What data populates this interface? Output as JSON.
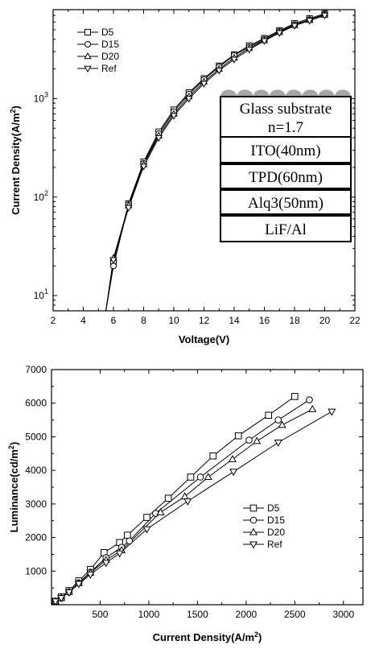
{
  "chart_data": [
    {
      "type": "line",
      "xlabel": "Voltage(V)",
      "ylabel": "Current Density(A/m²)",
      "xlim": [
        2,
        22
      ],
      "ylim": [
        7,
        8000
      ],
      "yscale": "log",
      "xticks": [
        2,
        4,
        6,
        8,
        10,
        12,
        14,
        16,
        18,
        20,
        22
      ],
      "xtick_labels": [
        "2",
        "4",
        "6",
        "8",
        "10",
        "12",
        "14",
        "16",
        "18",
        "20",
        "22"
      ],
      "yticks": [
        10,
        100,
        1000
      ],
      "ytick_labels": [
        "10¹",
        "10²",
        "10³"
      ],
      "legend_position": "top-left",
      "series": [
        {
          "name": "D5",
          "marker": "square",
          "x": [
            5.5,
            6,
            7,
            8,
            9,
            10,
            11,
            12,
            13,
            14,
            15,
            16,
            17,
            18,
            19,
            20
          ],
          "y": [
            7,
            22,
            86,
            228,
            460,
            770,
            1150,
            1600,
            2150,
            2800,
            3450,
            4100,
            4900,
            5800,
            6500,
            7300
          ]
        },
        {
          "name": "D15",
          "marker": "circle",
          "x": [
            5.5,
            6,
            7,
            8,
            9,
            10,
            11,
            12,
            13,
            14,
            15,
            16,
            17,
            18,
            19,
            20
          ],
          "y": [
            7,
            20,
            84,
            220,
            440,
            740,
            1110,
            1560,
            2100,
            2750,
            3350,
            4000,
            4800,
            5650,
            6350,
            7150
          ]
        },
        {
          "name": "D20",
          "marker": "triangle-up",
          "x": [
            5.5,
            6,
            7,
            8,
            9,
            10,
            11,
            12,
            13,
            14,
            15,
            16,
            17,
            18,
            19,
            20
          ],
          "y": [
            7,
            24,
            82,
            214,
            420,
            700,
            1050,
            1480,
            2000,
            2600,
            3250,
            3900,
            4700,
            5550,
            6250,
            7050
          ]
        },
        {
          "name": "Ref",
          "marker": "triangle-down",
          "x": [
            5.5,
            6,
            7,
            8,
            9,
            10,
            11,
            12,
            13,
            14,
            15,
            16,
            17,
            18,
            19,
            20
          ],
          "y": [
            7,
            23,
            78,
            205,
            400,
            670,
            1000,
            1420,
            1930,
            2500,
            3150,
            3850,
            4650,
            5500,
            6200,
            7000
          ]
        }
      ],
      "inset": {
        "layers": [
          "Glass substrate",
          "n=1.7",
          "ITO(40nm)",
          "TPD(60nm)",
          "Alq3(50nm)",
          "LiF/Al"
        ]
      }
    },
    {
      "type": "line",
      "xlabel": "Current Density(A/m²)",
      "ylabel": "Luminance(cd/m²)",
      "xlim": [
        0,
        3200
      ],
      "ylim": [
        0,
        7000
      ],
      "xticks": [
        500,
        1000,
        1500,
        2000,
        2500,
        3000
      ],
      "xtick_labels": [
        "500",
        "1000",
        "1500",
        "2000",
        "2500",
        "3000"
      ],
      "yticks": [
        1000,
        2000,
        3000,
        4000,
        5000,
        6000,
        7000
      ],
      "ytick_labels": [
        "1000",
        "2000",
        "3000",
        "4000",
        "5000",
        "6000",
        "7000"
      ],
      "legend_position": "center-right",
      "series": [
        {
          "name": "D5",
          "marker": "square",
          "x": [
            40,
            100,
            180,
            280,
            400,
            540,
            700,
            780,
            980,
            1200,
            1430,
            1660,
            1920,
            2230,
            2500
          ],
          "y": [
            100,
            230,
            420,
            710,
            1050,
            1550,
            1850,
            2070,
            2600,
            3170,
            3800,
            4430,
            5030,
            5640,
            6200
          ]
        },
        {
          "name": "D15",
          "marker": "circle",
          "x": [
            40,
            100,
            180,
            280,
            400,
            560,
            720,
            800,
            1070,
            1530,
            2030,
            2330,
            2650
          ],
          "y": [
            100,
            200,
            380,
            650,
            970,
            1400,
            1710,
            1900,
            2720,
            3800,
            4900,
            5500,
            6100
          ]
        },
        {
          "name": "D20",
          "marker": "triangle-up",
          "x": [
            40,
            100,
            180,
            280,
            400,
            560,
            720,
            1120,
            1370,
            1610,
            1860,
            2110,
            2370,
            2680
          ],
          "y": [
            100,
            200,
            380,
            640,
            950,
            1330,
            1620,
            2750,
            3220,
            3800,
            4330,
            4870,
            5350,
            5820
          ]
        },
        {
          "name": "Ref",
          "marker": "triangle-down",
          "x": [
            40,
            100,
            180,
            280,
            400,
            560,
            700,
            980,
            1400,
            1870,
            2330,
            2880
          ],
          "y": [
            100,
            200,
            370,
            620,
            900,
            1250,
            1530,
            2250,
            3080,
            3960,
            4830,
            5750
          ]
        }
      ]
    }
  ]
}
